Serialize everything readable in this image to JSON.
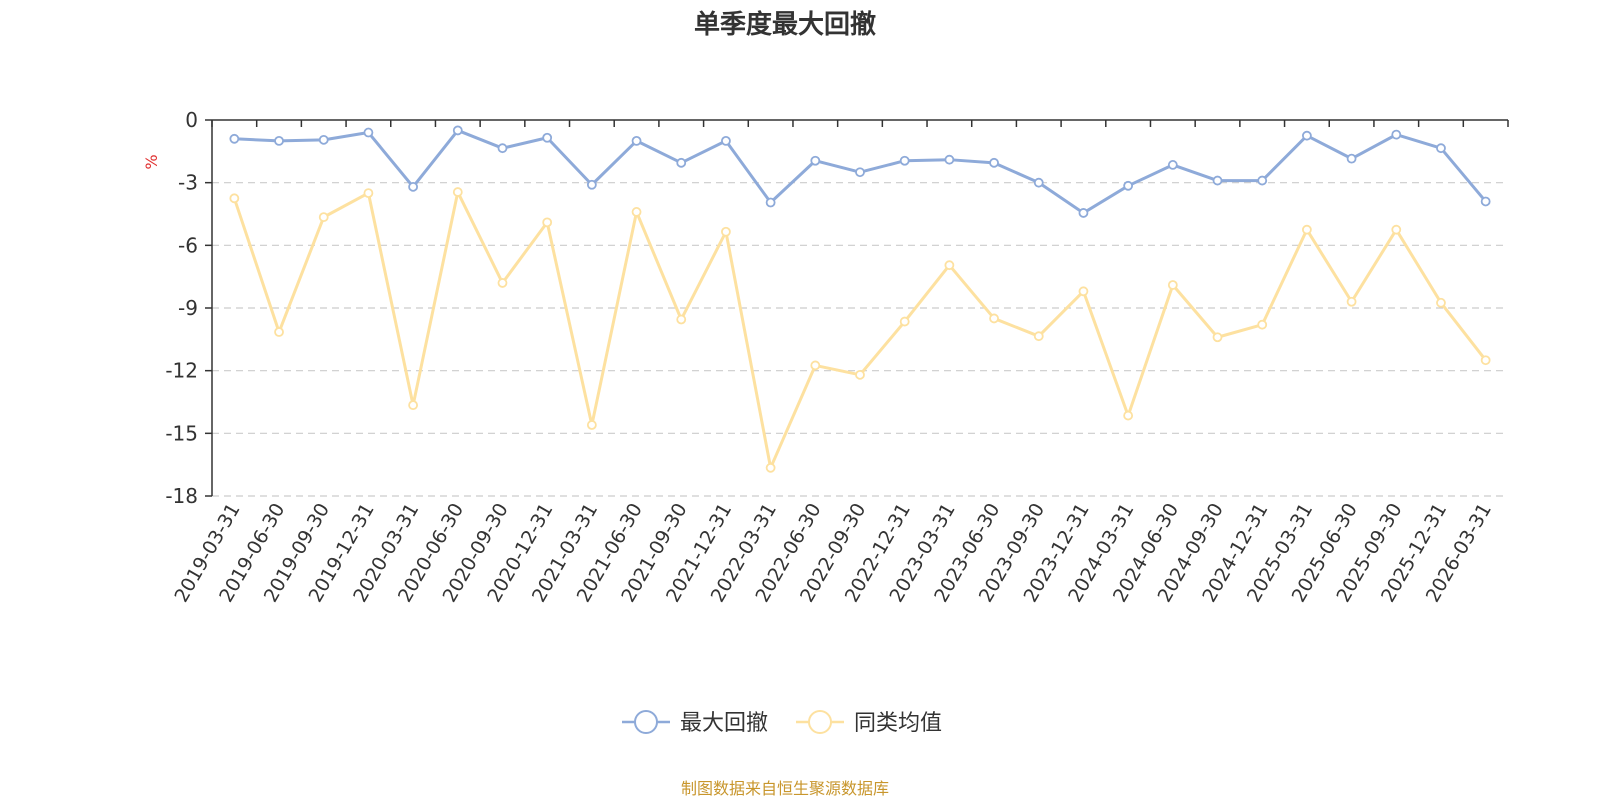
{
  "chart_data": {
    "type": "line",
    "title": "单季度最大回撤",
    "ylabel": "%",
    "xlabel": "",
    "ylim": [
      -18,
      0
    ],
    "yticks": [
      0,
      -3,
      -6,
      -9,
      -12,
      -15,
      -18
    ],
    "grid": true,
    "legend_position": "bottom-center",
    "categories": [
      "2019-03-31",
      "2019-06-30",
      "2019-09-30",
      "2019-12-31",
      "2020-03-31",
      "2020-06-30",
      "2020-09-30",
      "2020-12-31",
      "2021-03-31",
      "2021-06-30",
      "2021-09-30",
      "2021-12-31",
      "2022-03-31",
      "2022-06-30",
      "2022-09-30",
      "2022-12-31",
      "2023-03-31",
      "2023-06-30",
      "2023-09-30",
      "2023-12-31",
      "2024-03-31",
      "2024-06-30",
      "2024-09-30",
      "2024-12-31",
      "2025-03-31",
      "2025-06-30",
      "2025-09-30",
      "2025-12-31",
      "2026-03-31"
    ],
    "series": [
      {
        "name": "最大回撤",
        "color": "#8eaad9",
        "values": [
          -0.9,
          -1.0,
          -0.95,
          -0.6,
          -3.2,
          -0.5,
          -1.35,
          -0.85,
          -3.1,
          -1.0,
          -2.05,
          -1.0,
          -3.95,
          -1.95,
          -2.5,
          -1.95,
          -1.9,
          -2.05,
          -3.0,
          -4.45,
          -3.15,
          -2.15,
          -2.9,
          -2.9,
          -0.75,
          -1.85,
          -0.7,
          -1.35,
          -3.9
        ]
      },
      {
        "name": "同类均值",
        "color": "#fde1a0",
        "values": [
          -3.75,
          -10.15,
          -4.65,
          -3.5,
          -13.65,
          -3.45,
          -7.8,
          -4.9,
          -14.6,
          -4.4,
          -9.55,
          -5.35,
          -16.65,
          -11.75,
          -12.2,
          -9.65,
          -6.95,
          -9.5,
          -10.35,
          -8.2,
          -14.15,
          -7.9,
          -10.4,
          -9.8,
          -5.25,
          -8.7,
          -5.25,
          -8.75,
          -11.5
        ]
      }
    ]
  },
  "source_text": "制图数据来自恒生聚源数据库",
  "colors": {
    "axis": "#333333",
    "grid": "#cccccc",
    "unit": "#e03030",
    "source": "#c8962c"
  }
}
